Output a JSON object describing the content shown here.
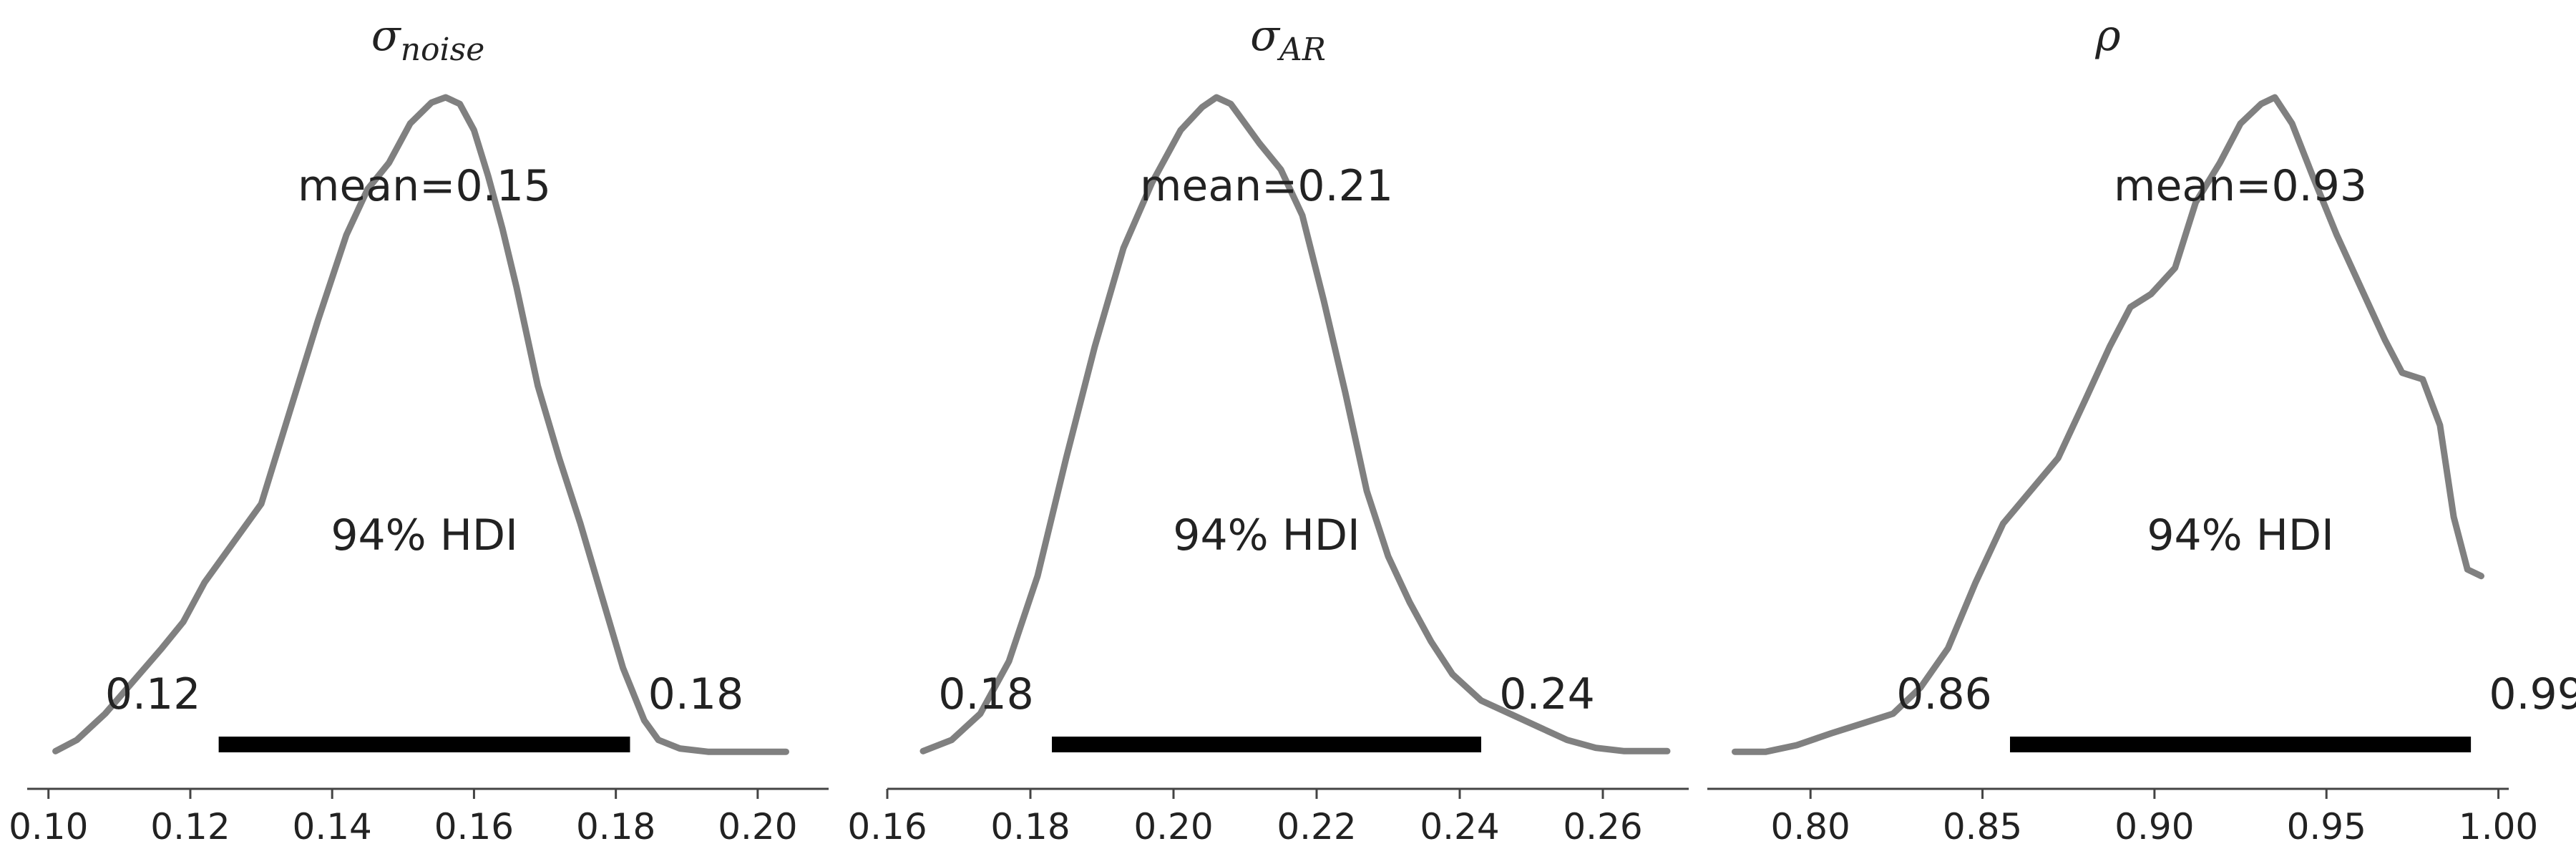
{
  "chart_data": [
    {
      "type": "area",
      "title": {
        "base": "σ",
        "sub": "noise"
      },
      "mean_label": "mean=0.15",
      "hdi_label": "94% HDI",
      "hdi": {
        "low": 0.124,
        "high": 0.182,
        "low_label": "0.12",
        "high_label": "0.18"
      },
      "xlim": [
        0.097,
        0.21
      ],
      "xticks": [
        {
          "value": 0.1,
          "label": "0.10"
        },
        {
          "value": 0.12,
          "label": "0.12"
        },
        {
          "value": 0.14,
          "label": "0.14"
        },
        {
          "value": 0.16,
          "label": "0.16"
        },
        {
          "value": 0.18,
          "label": "0.18"
        },
        {
          "value": 0.2,
          "label": "0.20"
        }
      ],
      "kde": {
        "x": [
          0.101,
          0.104,
          0.108,
          0.112,
          0.116,
          0.119,
          0.122,
          0.126,
          0.13,
          0.134,
          0.138,
          0.142,
          0.145,
          0.148,
          0.151,
          0.154,
          0.156,
          0.158,
          0.16,
          0.162,
          0.164,
          0.166,
          0.169,
          0.172,
          0.175,
          0.178,
          0.181,
          0.184,
          0.186,
          0.189,
          0.193,
          0.197,
          0.204
        ],
        "density": [
          0.003,
          0.02,
          0.06,
          0.11,
          0.16,
          0.2,
          0.26,
          0.32,
          0.38,
          0.52,
          0.66,
          0.79,
          0.86,
          0.9,
          0.96,
          0.992,
          1.0,
          0.99,
          0.95,
          0.88,
          0.8,
          0.71,
          0.56,
          0.45,
          0.35,
          0.24,
          0.13,
          0.05,
          0.02,
          0.007,
          0.002,
          0.002,
          0.002
        ]
      }
    },
    {
      "type": "area",
      "title": {
        "base": "σ",
        "sub": "AR"
      },
      "mean_label": "mean=0.21",
      "hdi_label": "94% HDI",
      "hdi": {
        "low": 0.183,
        "high": 0.243,
        "low_label": "0.18",
        "high_label": "0.24"
      },
      "xlim": [
        0.16,
        0.272
      ],
      "xticks": [
        {
          "value": 0.16,
          "label": "0.16"
        },
        {
          "value": 0.18,
          "label": "0.18"
        },
        {
          "value": 0.2,
          "label": "0.20"
        },
        {
          "value": 0.22,
          "label": "0.22"
        },
        {
          "value": 0.24,
          "label": "0.24"
        },
        {
          "value": 0.26,
          "label": "0.26"
        }
      ],
      "kde": {
        "x": [
          0.165,
          0.169,
          0.173,
          0.177,
          0.181,
          0.185,
          0.189,
          0.193,
          0.197,
          0.201,
          0.204,
          0.206,
          0.208,
          0.21,
          0.212,
          0.215,
          0.218,
          0.221,
          0.224,
          0.227,
          0.23,
          0.233,
          0.236,
          0.239,
          0.243,
          0.247,
          0.251,
          0.255,
          0.259,
          0.263,
          0.269
        ],
        "density": [
          0.003,
          0.02,
          0.06,
          0.14,
          0.27,
          0.45,
          0.62,
          0.77,
          0.87,
          0.95,
          0.985,
          1.0,
          0.99,
          0.96,
          0.93,
          0.89,
          0.82,
          0.69,
          0.55,
          0.4,
          0.3,
          0.23,
          0.17,
          0.12,
          0.08,
          0.06,
          0.04,
          0.02,
          0.008,
          0.003,
          0.003
        ]
      }
    },
    {
      "type": "area",
      "title": {
        "base": "ρ",
        "sub": ""
      },
      "mean_label": "mean=0.93",
      "hdi_label": "94% HDI",
      "hdi": {
        "low": 0.858,
        "high": 0.992,
        "low_label": "0.86",
        "high_label": "0.99"
      },
      "xlim": [
        0.77,
        1.003
      ],
      "xticks": [
        {
          "value": 0.8,
          "label": "0.80"
        },
        {
          "value": 0.85,
          "label": "0.85"
        },
        {
          "value": 0.9,
          "label": "0.90"
        },
        {
          "value": 0.95,
          "label": "0.95"
        },
        {
          "value": 1.0,
          "label": "1.00"
        }
      ],
      "kde": {
        "x": [
          0.778,
          0.787,
          0.796,
          0.806,
          0.815,
          0.824,
          0.832,
          0.84,
          0.848,
          0.856,
          0.864,
          0.872,
          0.88,
          0.887,
          0.893,
          0.899,
          0.906,
          0.912,
          0.919,
          0.925,
          0.931,
          0.935,
          0.94,
          0.946,
          0.953,
          0.96,
          0.967,
          0.972,
          0.978,
          0.983,
          0.987,
          0.991,
          0.995
        ],
        "density": [
          0.002,
          0.002,
          0.012,
          0.03,
          0.045,
          0.06,
          0.1,
          0.16,
          0.26,
          0.35,
          0.4,
          0.45,
          0.54,
          0.62,
          0.68,
          0.7,
          0.74,
          0.84,
          0.9,
          0.96,
          0.99,
          1.0,
          0.96,
          0.88,
          0.79,
          0.71,
          0.63,
          0.58,
          0.57,
          0.5,
          0.36,
          0.28,
          0.27
        ]
      }
    }
  ]
}
